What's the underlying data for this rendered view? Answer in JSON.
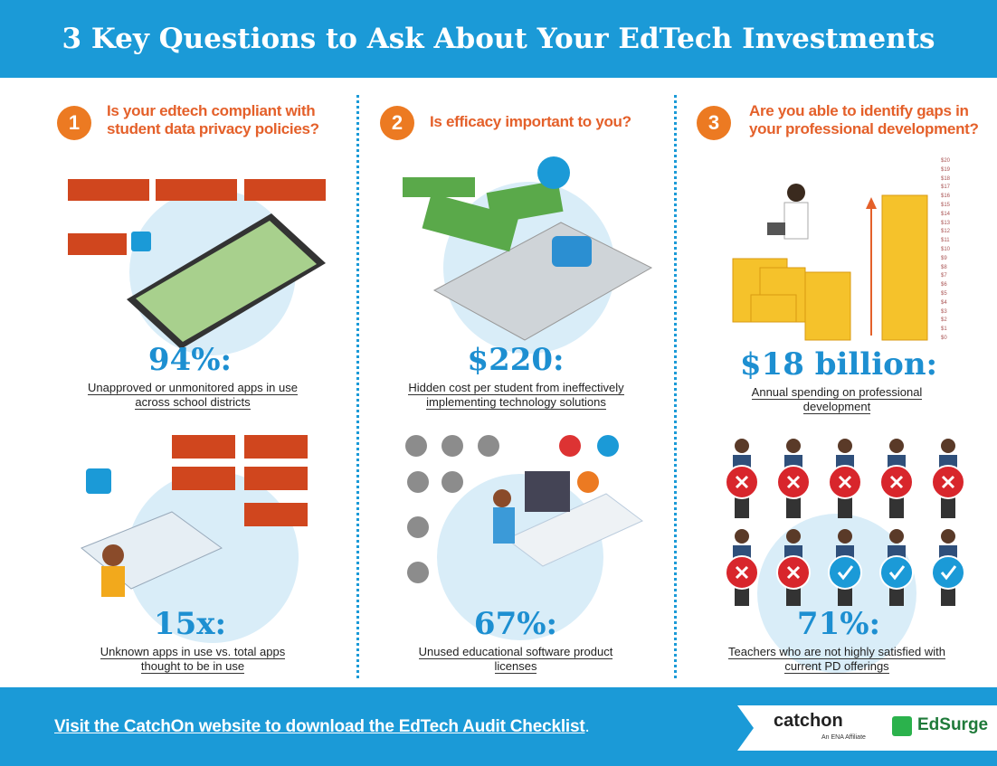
{
  "header": {
    "title": "3 Key Questions to Ask About Your EdTech Investments"
  },
  "columns": [
    {
      "number": "1",
      "question": "Is your edtech compliant with student data privacy policies?",
      "stats": [
        {
          "figure": "94%:",
          "description": "Unapproved or unmonitored apps in use across school districts"
        },
        {
          "figure": "15x:",
          "description": "Unknown apps in use vs. total apps thought to be in use"
        }
      ]
    },
    {
      "number": "2",
      "question": "Is efficacy important to you?",
      "stats": [
        {
          "figure": "$220:",
          "description": "Hidden cost per student from ineffectively implementing technology solutions"
        },
        {
          "figure": "67%:",
          "description": "Unused educational software product licenses"
        }
      ]
    },
    {
      "number": "3",
      "question": "Are you able to identify gaps in your professional development?",
      "scale_labels": [
        "$20",
        "$19",
        "$18",
        "$17",
        "$16",
        "$15",
        "$14",
        "$13",
        "$12",
        "$11",
        "$10",
        "$9",
        "$8",
        "$7",
        "$6",
        "$5",
        "$4",
        "$3",
        "$2",
        "$1",
        "$0"
      ],
      "stats": [
        {
          "figure": "$18 billion:",
          "description": "Annual spending on professional development"
        },
        {
          "figure": "71%:",
          "description": "Teachers who are not highly satisfied with current PD offerings"
        }
      ]
    }
  ],
  "footer": {
    "link": "Visit the CatchOn website to download the EdTech Audit Checklist",
    "period": ".",
    "logo_catchon": "catchon",
    "logo_tagline": "An ENA Affiliate",
    "logo_edsurge": "EdSurge"
  }
}
